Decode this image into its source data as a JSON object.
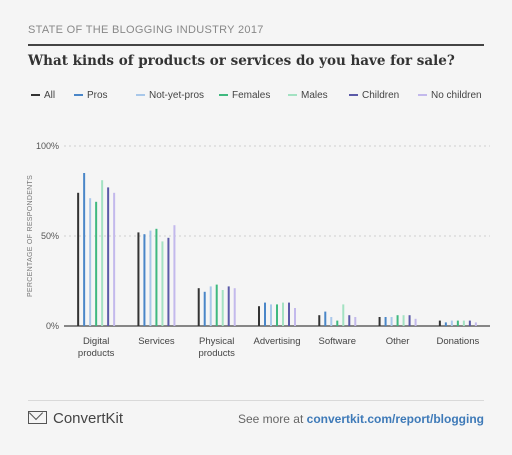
{
  "header": {
    "title": "STATE OF THE BLOGGING INDUSTRY 2017"
  },
  "question": "What kinds of products or services do you have for sale?",
  "footer": {
    "brand": "ConvertKit",
    "see_more": "See more at ",
    "link": "convertkit.com/report/blogging"
  },
  "chart_data": {
    "type": "bar",
    "ylabel": "PERCENTAGE OF RESPONDENTS",
    "ylim": [
      0,
      100
    ],
    "yticks": [
      {
        "value": 100,
        "label": "100%"
      },
      {
        "value": 50,
        "label": "50%"
      },
      {
        "value": 0,
        "label": "0%"
      }
    ],
    "categories": [
      [
        "Digital",
        "products"
      ],
      [
        "Services"
      ],
      [
        "Physical",
        "products"
      ],
      [
        "Advertising"
      ],
      [
        "Software"
      ],
      [
        "Other"
      ],
      [
        "Donations"
      ]
    ],
    "series": [
      {
        "name": "All",
        "color": "#333333",
        "values": [
          74,
          52,
          21,
          11,
          6,
          5,
          3
        ]
      },
      {
        "name": "Pros",
        "color": "#4a86c8",
        "values": [
          85,
          51,
          19,
          13,
          8,
          5,
          2
        ]
      },
      {
        "name": "Not-yet-pros",
        "color": "#a9c8ea",
        "values": [
          71,
          53,
          22,
          12,
          5,
          5,
          3
        ]
      },
      {
        "name": "Females",
        "color": "#3fb97f",
        "values": [
          69,
          54,
          23,
          12,
          3,
          6,
          3
        ]
      },
      {
        "name": "Males",
        "color": "#a3e2c2",
        "values": [
          81,
          47,
          20,
          13,
          12,
          6,
          3
        ]
      },
      {
        "name": "Children",
        "color": "#5b5aa8",
        "values": [
          77,
          49,
          22,
          13,
          6,
          6,
          3
        ]
      },
      {
        "name": "No children",
        "color": "#c3b9ec",
        "values": [
          74,
          56,
          21,
          10,
          5,
          4,
          2
        ]
      }
    ]
  }
}
